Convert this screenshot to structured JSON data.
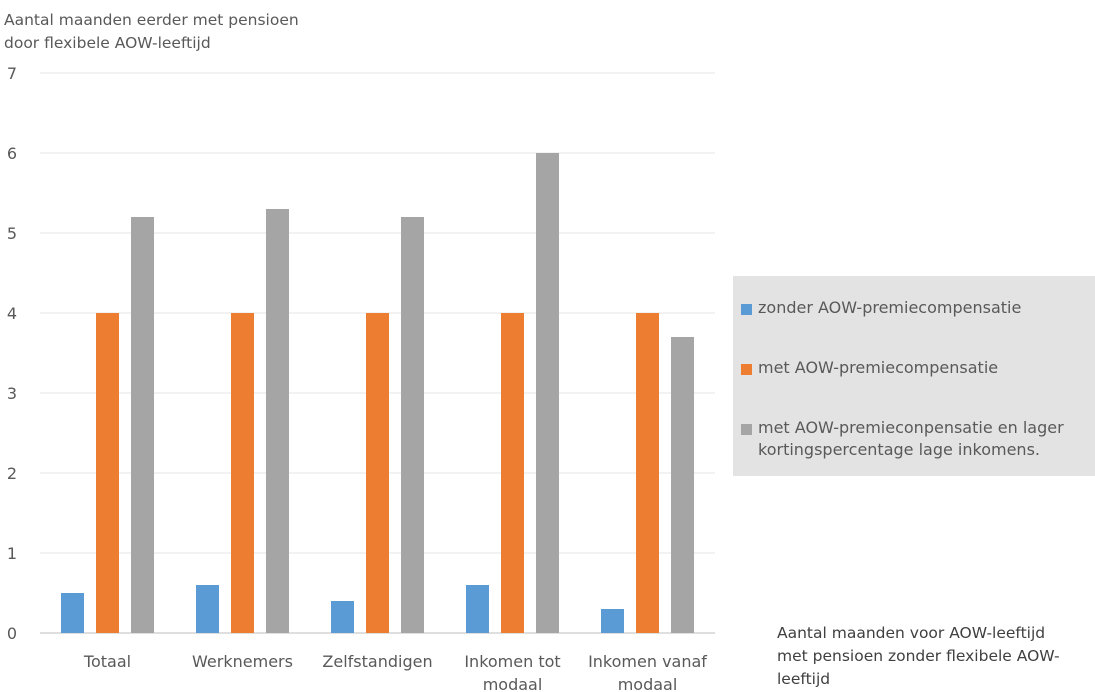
{
  "chart_data": {
    "type": "bar",
    "ylabel_lines": [
      "Aantal maanden eerder met pensioen",
      "door flexibele AOW-leeftijd"
    ],
    "xlabel_lines": [
      "Aantal maanden voor AOW-leeftijd",
      "met pensioen zonder flexibele AOW-",
      "leeftijd"
    ],
    "categories": [
      [
        "Totaal"
      ],
      [
        "Werknemers"
      ],
      [
        "Zelfstandigen"
      ],
      [
        "Inkomen tot",
        "modaal"
      ],
      [
        "Inkomen vanaf",
        "modaal"
      ]
    ],
    "ylim": [
      0,
      7
    ],
    "yticks": [
      "0",
      "1",
      "2",
      "3",
      "4",
      "5",
      "6",
      "7"
    ],
    "grid": true,
    "legend_position": "right",
    "series": [
      {
        "name": "zonder AOW-premiecompensatie",
        "color": "#5b9bd5",
        "values": [
          0.5,
          0.6,
          0.4,
          0.6,
          0.3
        ]
      },
      {
        "name": "met AOW-premiecompensatie",
        "color": "#ed7d31",
        "values": [
          4.0,
          4.0,
          4.0,
          4.0,
          4.0
        ]
      },
      {
        "name_lines": [
          "met AOW-premieconpensatie en lager",
          "kortingspercentage lage inkomens."
        ],
        "color": "#a5a5a5",
        "values": [
          5.2,
          5.3,
          5.2,
          6.0,
          3.7
        ]
      }
    ]
  }
}
